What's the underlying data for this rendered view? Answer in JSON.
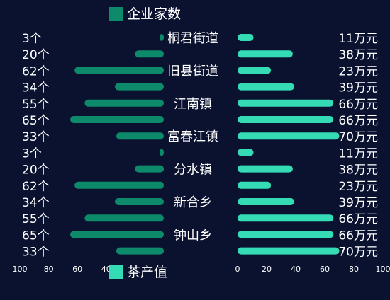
{
  "legend": {
    "top": {
      "label": "企业家数",
      "color": "#0d8a6a"
    },
    "bottom": {
      "label": "茶产值",
      "color": "#35dbb5"
    }
  },
  "chart_data": [
    {
      "type": "bar",
      "orientation": "horizontal",
      "direction": "right-to-left",
      "series": [
        {
          "name": "企业家数",
          "values": [
            3,
            20,
            62,
            34,
            55,
            65,
            33,
            3,
            20,
            62,
            34,
            55,
            65,
            33
          ]
        }
      ],
      "value_labels": [
        "3个",
        "20个",
        "62个",
        "34个",
        "55个",
        "65个",
        "33个",
        "3个",
        "20个",
        "62个",
        "34个",
        "55个",
        "65个",
        "33个"
      ],
      "xlim": [
        0,
        100
      ],
      "x_ticks": [
        "100",
        "80",
        "60",
        "40"
      ],
      "color": "#0d8a6a"
    },
    {
      "type": "bar",
      "orientation": "horizontal",
      "direction": "left-to-right",
      "series": [
        {
          "name": "茶产值",
          "values": [
            11,
            38,
            23,
            39,
            66,
            66,
            70,
            11,
            38,
            23,
            39,
            66,
            66,
            70
          ]
        }
      ],
      "value_labels": [
        "11万元",
        "38万元",
        "23万元",
        "39万元",
        "66万元",
        "66万元",
        "70万元",
        "11万元",
        "38万元",
        "23万元",
        "39万元",
        "66万元",
        "66万元",
        "70万元"
      ],
      "xlim": [
        0,
        100
      ],
      "x_ticks": [
        "0",
        "20",
        "40",
        "60",
        "80",
        "100"
      ],
      "color": "#35dbb5"
    }
  ],
  "category_labels": [
    {
      "row": 0,
      "text": "桐君街道"
    },
    {
      "row": 2,
      "text": "旧县街道"
    },
    {
      "row": 4,
      "text": "江南镇"
    },
    {
      "row": 6,
      "text": "富春江镇"
    },
    {
      "row": 8,
      "text": "分水镇"
    },
    {
      "row": 10,
      "text": "新合乡"
    },
    {
      "row": 12,
      "text": "钟山乡"
    }
  ]
}
